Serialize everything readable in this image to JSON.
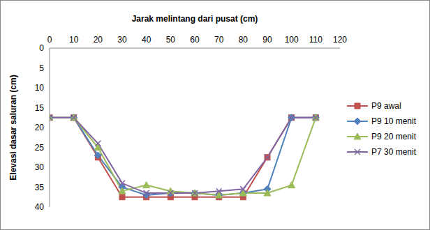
{
  "chart_data": {
    "type": "line",
    "xlabel": "Jarak melintang dari pusat (cm)",
    "ylabel": "Elevasi dasar saluran (cm)",
    "x": [
      0,
      10,
      20,
      30,
      40,
      50,
      60,
      70,
      80,
      90,
      100,
      110
    ],
    "series": [
      {
        "name": "P9 awal",
        "color": "#C0504D",
        "marker": "square",
        "values": [
          17.5,
          17.5,
          27.5,
          37.5,
          37.5,
          37.5,
          37.5,
          37.5,
          37.5,
          27.5,
          17.5,
          17.5
        ]
      },
      {
        "name": "P9 10 menit",
        "color": "#4F81BD",
        "marker": "diamond",
        "values": [
          17.5,
          17.5,
          27,
          35,
          37,
          36.5,
          36.5,
          37,
          36.5,
          35.5,
          17.5,
          17.5
        ]
      },
      {
        "name": "P9 20 menit",
        "color": "#9BBB59",
        "marker": "triangle",
        "values": [
          17.5,
          17.5,
          25,
          36,
          34.5,
          36,
          36.5,
          37,
          36.5,
          36.5,
          34.5,
          17.5
        ]
      },
      {
        "name": "P7 30 menit",
        "color": "#8064A2",
        "marker": "x",
        "values": [
          17.5,
          17.5,
          24,
          34,
          36.5,
          36.5,
          36.5,
          36,
          35.5,
          27.5,
          17.5,
          17.5
        ]
      }
    ],
    "xlim": [
      0,
      120
    ],
    "xticks": [
      0,
      10,
      20,
      30,
      40,
      50,
      60,
      70,
      80,
      90,
      100,
      110,
      120
    ],
    "ylim": [
      40,
      0
    ],
    "yticks": [
      0,
      5,
      10,
      15,
      20,
      25,
      30,
      35,
      40
    ],
    "grid": false,
    "legend": "right"
  }
}
